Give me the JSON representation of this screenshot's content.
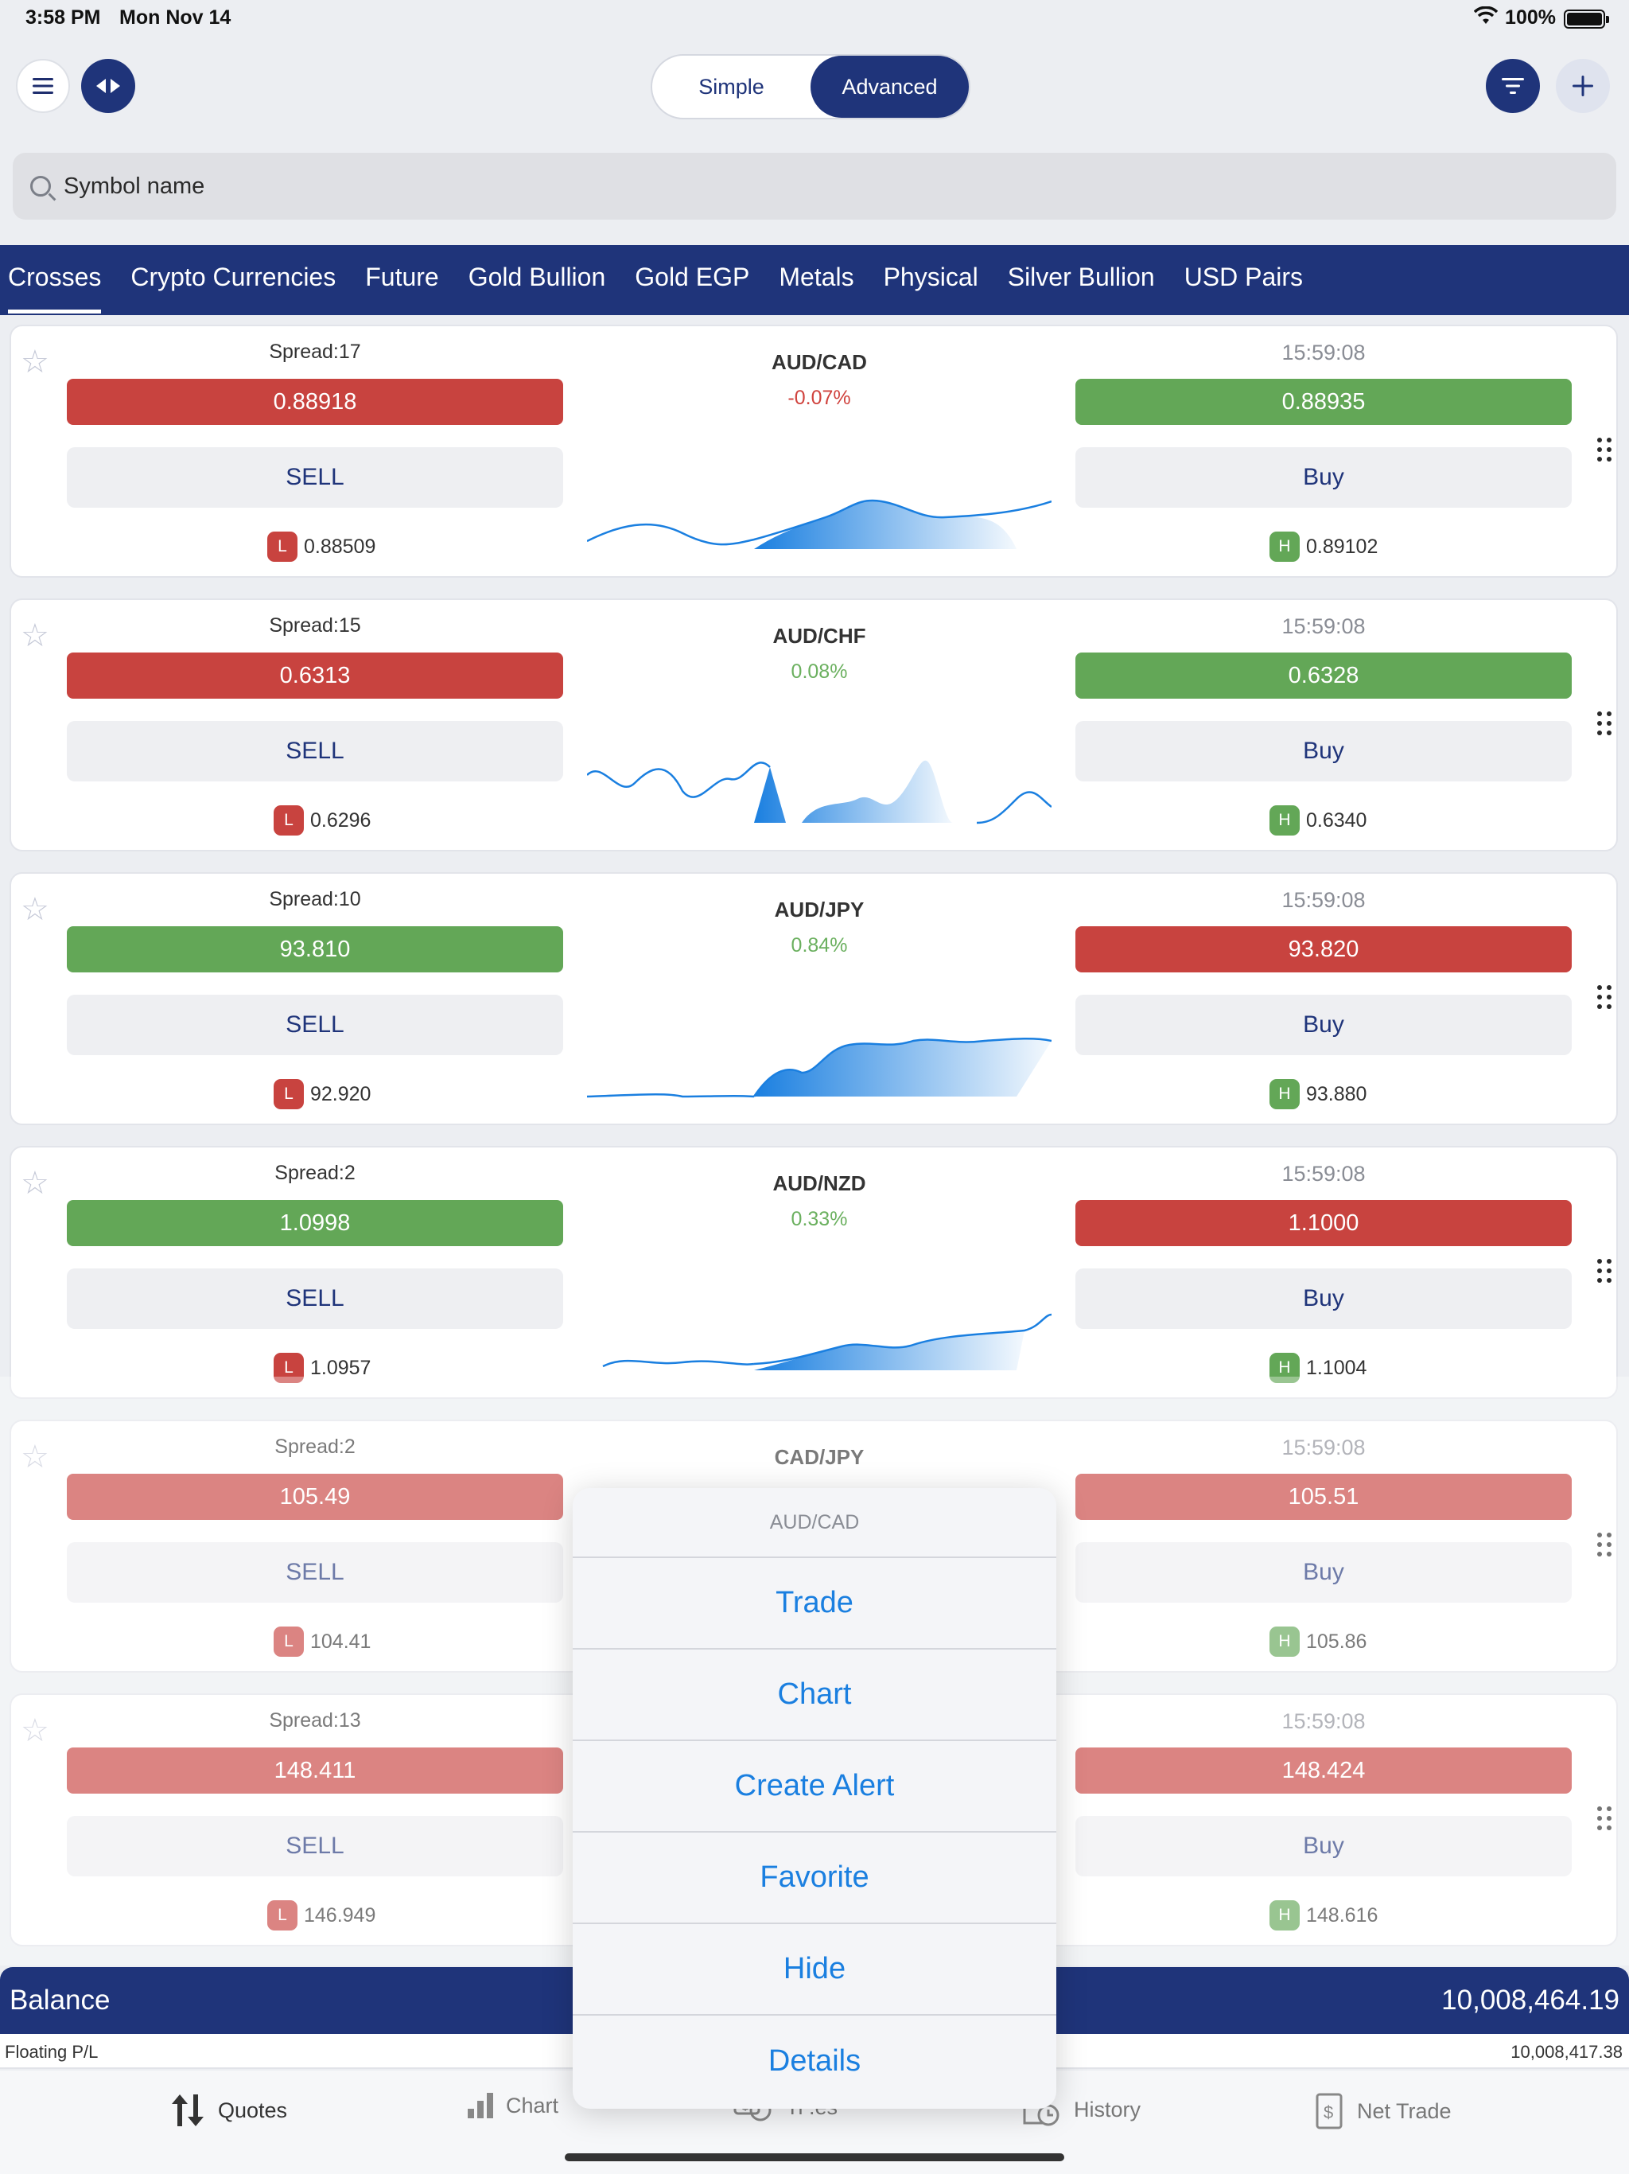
{
  "status": {
    "time": "3:58 PM",
    "date": "Mon Nov 14",
    "battery": "100%"
  },
  "toolbar": {
    "simple_label": "Simple",
    "advanced_label": "Advanced"
  },
  "search": {
    "placeholder": "Symbol name"
  },
  "tabs": [
    "Crosses",
    "Crypto Currencies",
    "Future",
    "Gold Bullion",
    "Gold EGP",
    "Metals",
    "Physical",
    "Silver Bullion",
    "USD Pairs"
  ],
  "quotes": [
    {
      "symbol": "AUD/CAD",
      "change": "-0.07%",
      "spread": "Spread:17",
      "time": "15:59:08",
      "sell_price": "0.88918",
      "buy_price": "0.88935",
      "sell_label": "SELL",
      "buy_label": "Buy",
      "low_badge": "L",
      "low": "0.88509",
      "high_badge": "H",
      "high": "0.89102",
      "sell_color": "#c8433f",
      "buy_color": "#63a757"
    },
    {
      "symbol": "AUD/CHF",
      "change": "0.08%",
      "spread": "Spread:15",
      "time": "15:59:08",
      "sell_price": "0.6313",
      "buy_price": "0.6328",
      "sell_label": "SELL",
      "buy_label": "Buy",
      "low_badge": "L",
      "low": "0.6296",
      "high_badge": "H",
      "high": "0.6340",
      "sell_color": "#c8433f",
      "buy_color": "#63a757"
    },
    {
      "symbol": "AUD/JPY",
      "change": "0.84%",
      "spread": "Spread:10",
      "time": "15:59:08",
      "sell_price": "93.810",
      "buy_price": "93.820",
      "sell_label": "SELL",
      "buy_label": "Buy",
      "low_badge": "L",
      "low": "92.920",
      "high_badge": "H",
      "high": "93.880",
      "sell_color": "#63a757",
      "buy_color": "#c8433f"
    },
    {
      "symbol": "AUD/NZD",
      "change": "0.33%",
      "spread": "Spread:2",
      "time": "15:59:08",
      "sell_price": "1.0998",
      "buy_price": "1.1000",
      "sell_label": "SELL",
      "buy_label": "Buy",
      "low_badge": "L",
      "low": "1.0957",
      "high_badge": "H",
      "high": "1.1004",
      "sell_color": "#63a757",
      "buy_color": "#c8433f"
    },
    {
      "symbol": "CAD/JPY",
      "change": "",
      "spread": "Spread:2",
      "time": "15:59:08",
      "sell_price": "105.49",
      "buy_price": "105.51",
      "sell_label": "SELL",
      "buy_label": "Buy",
      "low_badge": "L",
      "low": "104.41",
      "high_badge": "H",
      "high": "105.86",
      "sell_color": "#c8433f",
      "buy_color": "#c8433f"
    },
    {
      "symbol": "",
      "change": "",
      "spread": "Spread:13",
      "time": "15:59:08",
      "sell_price": "148.411",
      "buy_price": "148.424",
      "sell_label": "SELL",
      "buy_label": "Buy",
      "low_badge": "L",
      "low": "146.949",
      "high_badge": "H",
      "high": "148.616",
      "sell_color": "#c8433f",
      "buy_color": "#c8433f"
    }
  ],
  "account": {
    "balance_label": "Balance",
    "balance_value": "10,008,464.19",
    "floating_label": "Floating P/L",
    "floating_value": "10,008,417.38"
  },
  "bottom_tabs": [
    "Quotes",
    "Chart",
    "Ti   .es",
    "History",
    "Net Trade"
  ],
  "popup": {
    "title": "AUD/CAD",
    "options": [
      "Trade",
      "Chart",
      "Create Alert",
      "Favorite",
      "Hide",
      "Details"
    ]
  },
  "colors": {
    "navy": "#1f347a",
    "sell_red": "#c8433f",
    "buy_green": "#63a757",
    "link_blue": "#1a7fe0",
    "spark_blue": "#1a7fe0"
  }
}
